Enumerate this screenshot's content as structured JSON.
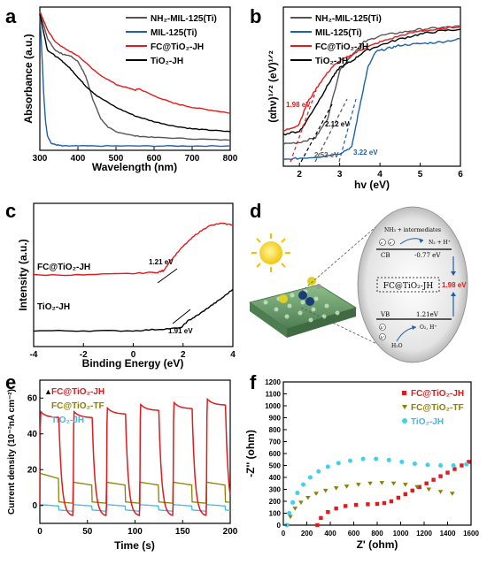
{
  "chart_data": [
    {
      "panel": "a",
      "type": "line",
      "xlabel": "Wavelength (nm)",
      "ylabel": "Absorbance (a.u.)",
      "xlim": [
        300,
        800
      ],
      "xticks": [
        300,
        400,
        500,
        600,
        700,
        800
      ],
      "ylim": [
        0,
        1
      ],
      "legend_position": "top-right",
      "colors": [
        "#555555",
        "#1f5fb0",
        "#e31a1c",
        "#000000"
      ],
      "series": [
        {
          "name": "NH₂-MIL-125(Ti)",
          "x": [
            300,
            320,
            340,
            360,
            380,
            400,
            420,
            440,
            460,
            480,
            500,
            550,
            600,
            700,
            800
          ],
          "y": [
            0.97,
            0.78,
            0.7,
            0.67,
            0.66,
            0.62,
            0.52,
            0.35,
            0.22,
            0.16,
            0.13,
            0.1,
            0.09,
            0.08,
            0.07
          ]
        },
        {
          "name": "MIL-125(Ti)",
          "x": [
            300,
            305,
            310,
            315,
            320,
            330,
            340,
            360,
            400,
            500,
            600,
            700,
            800
          ],
          "y": [
            0.95,
            0.7,
            0.4,
            0.2,
            0.1,
            0.05,
            0.04,
            0.03,
            0.03,
            0.03,
            0.03,
            0.03,
            0.03
          ]
        },
        {
          "name": "FC@TiO₂-JH",
          "x": [
            300,
            320,
            340,
            360,
            380,
            400,
            450,
            500,
            550,
            560,
            600,
            650,
            700,
            750,
            800
          ],
          "y": [
            0.97,
            0.84,
            0.76,
            0.72,
            0.69,
            0.66,
            0.54,
            0.46,
            0.42,
            0.43,
            0.38,
            0.33,
            0.3,
            0.28,
            0.26
          ]
        },
        {
          "name": "TiO₂-JH",
          "x": [
            300,
            320,
            340,
            360,
            380,
            400,
            420,
            450,
            500,
            550,
            600,
            650,
            700,
            750,
            800
          ],
          "y": [
            0.95,
            0.7,
            0.66,
            0.62,
            0.57,
            0.51,
            0.45,
            0.38,
            0.3,
            0.24,
            0.2,
            0.17,
            0.15,
            0.14,
            0.13
          ]
        }
      ]
    },
    {
      "panel": "b",
      "type": "line",
      "xlabel": "hv (eV)",
      "ylabel": "(αhν)¹ᐟ² (eV)¹ᐟ²",
      "xlim": [
        1.6,
        6
      ],
      "xticks": [
        2,
        3,
        4,
        5,
        6
      ],
      "ylim": [
        0,
        1
      ],
      "legend_position": "top-left",
      "colors": [
        "#555555",
        "#1f5fb0",
        "#e31a1c",
        "#000000"
      ],
      "series": [
        {
          "name": "NH₂-MIL-125(Ti)",
          "x": [
            1.6,
            2.0,
            2.4,
            2.7,
            3.0,
            3.3,
            3.6,
            4.0,
            4.5,
            5.0,
            5.5,
            6.0
          ],
          "y": [
            0.14,
            0.15,
            0.18,
            0.3,
            0.6,
            0.7,
            0.78,
            0.82,
            0.84,
            0.86,
            0.87,
            0.88
          ]
        },
        {
          "name": "MIL-125(Ti)",
          "x": [
            1.6,
            2.0,
            2.5,
            3.0,
            3.3,
            3.5,
            3.7,
            3.9,
            4.2,
            4.5,
            5.0,
            5.5,
            6.0
          ],
          "y": [
            0.04,
            0.05,
            0.06,
            0.08,
            0.12,
            0.38,
            0.62,
            0.72,
            0.74,
            0.76,
            0.77,
            0.78,
            0.8
          ]
        },
        {
          "name": "FC@TiO₂-JH",
          "x": [
            1.6,
            1.98,
            2.2,
            2.5,
            2.8,
            3.0,
            3.3,
            3.6,
            4.0,
            4.5,
            5.0,
            5.5,
            6.0
          ],
          "y": [
            0.22,
            0.26,
            0.4,
            0.52,
            0.62,
            0.66,
            0.7,
            0.74,
            0.78,
            0.82,
            0.85,
            0.86,
            0.88
          ]
        },
        {
          "name": "TiO₂-JH",
          "x": [
            1.6,
            2.0,
            2.12,
            2.5,
            2.8,
            3.0,
            3.3,
            3.6,
            4.0,
            4.5,
            5.0,
            5.5,
            6.0
          ],
          "y": [
            0.2,
            0.22,
            0.26,
            0.42,
            0.55,
            0.62,
            0.66,
            0.72,
            0.76,
            0.8,
            0.83,
            0.85,
            0.86
          ]
        }
      ],
      "annotations": [
        "1.98 eV",
        "2.12 eV",
        "2.52 eV",
        "3.22 eV"
      ]
    },
    {
      "panel": "c",
      "type": "line",
      "xlabel": "Binding Energy (eV)",
      "ylabel": "Intensity (a.u.)",
      "xlim": [
        -4,
        4
      ],
      "xticks": [
        -4,
        -2,
        0,
        2,
        4
      ],
      "ylim": [
        0,
        1
      ],
      "colors": [
        "#e31a1c",
        "#000000"
      ],
      "series": [
        {
          "name": "FC@TiO₂-JH",
          "x": [
            -4,
            -2,
            0,
            1,
            1.21,
            1.5,
            2,
            2.5,
            3,
            3.5,
            4
          ],
          "y": [
            0.5,
            0.5,
            0.51,
            0.52,
            0.53,
            0.6,
            0.7,
            0.78,
            0.84,
            0.86,
            0.85
          ]
        },
        {
          "name": "TiO₂-JH",
          "x": [
            -4,
            -2,
            0,
            1,
            1.91,
            2.2,
            2.6,
            3,
            3.5,
            4
          ],
          "y": [
            0.11,
            0.11,
            0.11,
            0.12,
            0.13,
            0.18,
            0.22,
            0.27,
            0.33,
            0.4
          ]
        }
      ],
      "annotations": [
        "1.21 eV",
        "1.91 eV"
      ]
    },
    {
      "panel": "e",
      "type": "line",
      "xlabel": "Time (s)",
      "ylabel": "Current density (10⁻³nA cm⁻²)",
      "xlim": [
        0,
        200
      ],
      "xticks": [
        0,
        50,
        100,
        150,
        200
      ],
      "ylim": [
        -10,
        70
      ],
      "yticks": [
        0,
        20,
        40,
        60
      ],
      "legend_position": "top-left",
      "colors": [
        "#e31a1c",
        "#8b8000",
        "#3fb8f0"
      ],
      "series": [
        {
          "name": "FC@TiO₂-JH",
          "on_intervals": [
            [
              0,
              20
            ],
            [
              35,
              55
            ],
            [
              70,
              90
            ],
            [
              105,
              125
            ],
            [
              140,
              160
            ],
            [
              175,
              195
            ]
          ],
          "peak_values": [
            53,
            53,
            55,
            57,
            58,
            60
          ],
          "off_minimum": -6
        },
        {
          "name": "FC@TiO₂-TF",
          "on_value_range": [
            10,
            15
          ],
          "off_value_range": [
            0,
            3
          ],
          "start_value": 18
        },
        {
          "name": "TiO₂-JH",
          "on_value_range": [
            0,
            1
          ],
          "off_value_range": [
            -4,
            -2
          ]
        }
      ]
    },
    {
      "panel": "f",
      "type": "scatter",
      "xlabel": "Z' (ohm)",
      "ylabel": "-Z'' (ohm)",
      "xlim": [
        0,
        1600
      ],
      "xticks": [
        0,
        200,
        400,
        600,
        800,
        1000,
        1200,
        1400,
        1600
      ],
      "ylim": [
        0,
        1200
      ],
      "yticks": [
        0,
        100,
        200,
        300,
        400,
        500,
        600,
        700,
        800,
        900,
        1000,
        1100,
        1200
      ],
      "legend_position": "top-right",
      "colors": [
        "#e31a1c",
        "#8b8000",
        "#3fd0f0"
      ],
      "series": [
        {
          "name": "FC@TiO₂-JH",
          "x": [
            290,
            320,
            380,
            450,
            530,
            620,
            720,
            800,
            860,
            920,
            980,
            1040,
            1100,
            1160,
            1220,
            1280,
            1340,
            1400,
            1460,
            1520,
            1580
          ],
          "y": [
            0,
            60,
            110,
            140,
            160,
            170,
            175,
            178,
            185,
            200,
            230,
            260,
            290,
            320,
            350,
            380,
            410,
            440,
            470,
            500,
            530
          ]
        },
        {
          "name": "FC@TiO₂-TF",
          "x": [
            30,
            60,
            100,
            150,
            210,
            280,
            360,
            450,
            540,
            640,
            740,
            840,
            940,
            1040,
            1140,
            1240,
            1340,
            1440
          ],
          "y": [
            0,
            70,
            140,
            190,
            230,
            265,
            290,
            310,
            325,
            340,
            350,
            355,
            350,
            340,
            320,
            300,
            280,
            265
          ]
        },
        {
          "name": "TiO₂-JH",
          "x": [
            30,
            50,
            80,
            120,
            170,
            230,
            300,
            380,
            470,
            570,
            680,
            790,
            900,
            1010,
            1120,
            1230,
            1340,
            1450,
            1560
          ],
          "y": [
            0,
            100,
            190,
            270,
            340,
            400,
            450,
            490,
            520,
            540,
            555,
            555,
            545,
            530,
            515,
            505,
            500,
            500,
            510
          ]
        }
      ]
    }
  ],
  "panels": {
    "a": {
      "label": "a",
      "xlabel": "Wavelength (nm)",
      "ylabel": "Absorbance (a.u.)",
      "xticks": [
        "300",
        "400",
        "500",
        "600",
        "700",
        "800"
      ],
      "legend": [
        "NH₂-MIL-125(Ti)",
        "MIL-125(Ti)",
        "FC@TiO₂-JH",
        "TiO₂-JH"
      ]
    },
    "b": {
      "label": "b",
      "xlabel": "hv (eV)",
      "ylabel": "(αhν)¹ᐟ² (eV)¹ᐟ²",
      "xticks": [
        "2",
        "3",
        "4",
        "5",
        "6"
      ],
      "legend": [
        "NH₂-MIL-125(Ti)",
        "MIL-125(Ti)",
        "FC@TiO₂-JH",
        "TiO₂-JH"
      ],
      "ann": [
        "1.98 eV",
        "2.12 eV",
        "2.52 eV",
        "3.22 eV"
      ]
    },
    "c": {
      "label": "c",
      "xlabel": "Binding Energy (eV)",
      "ylabel": "Intensity (a.u.)",
      "xticks": [
        "-4",
        "-2",
        "0",
        "2",
        "4"
      ],
      "series_labels": [
        "FC@TiO₂-JH",
        "TiO₂-JH"
      ],
      "ann": [
        "1.21 eV",
        "1.91 eV"
      ]
    },
    "d": {
      "label": "d",
      "top_text": "NH₃ + intermediates",
      "n2_text": "N₂ + H⁺",
      "cb_label": "CB",
      "cb_value": "-0.77 eV",
      "center_label": "FC@TiO₂-JH",
      "gap_value": "1.98 eV",
      "vb_label": "VB",
      "vb_value": "1.21eV",
      "o2_text": "O₂, H⁺",
      "h2o_text": "H₂O",
      "electron_symbol": "e⁻",
      "hole_symbol": "h⁺"
    },
    "e": {
      "label": "e",
      "xlabel": "Time (s)",
      "ylabel": "Current density (10⁻³nA cm⁻²)",
      "xticks": [
        "0",
        "50",
        "100",
        "150",
        "200"
      ],
      "yticks": [
        "0",
        "20",
        "40",
        "60"
      ],
      "legend": [
        "FC@TiO₂-JH",
        "FC@TiO₂-TF",
        "TiO₂-JH"
      ]
    },
    "f": {
      "label": "f",
      "xlabel": "Z' (ohm)",
      "ylabel": "-Z'' (ohm)",
      "xticks": [
        "0",
        "200",
        "400",
        "600",
        "800",
        "1000",
        "1200",
        "1400",
        "1600"
      ],
      "yticks": [
        "0",
        "100",
        "200",
        "300",
        "400",
        "500",
        "600",
        "700",
        "800",
        "900",
        "1000",
        "1100",
        "1200"
      ],
      "legend": [
        "FC@TiO₂-JH",
        "FC@TiO₂-TF",
        "TiO₂-JH"
      ]
    }
  }
}
